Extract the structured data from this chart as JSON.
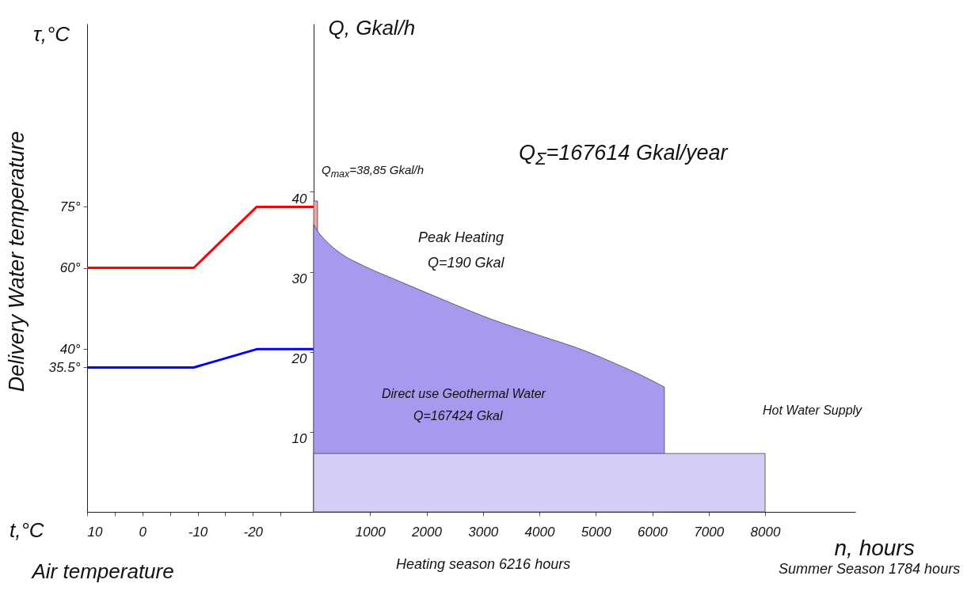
{
  "chart_data": [
    {
      "type": "line",
      "xlabel": "Air temperature",
      "ylabel": "Delivery Water temperature",
      "annotations": [
        "τ,°C",
        "t,°C"
      ],
      "xlim": [
        10,
        -31
      ],
      "ylim": [
        0,
        120
      ],
      "xticks": [
        10,
        {
          "value": 5,
          "label": null
        },
        0,
        {
          "value": -5,
          "label": null
        },
        -10,
        {
          "value": -15,
          "label": null
        },
        -20,
        {
          "value": -25,
          "label": null
        }
      ],
      "yticks": [
        {
          "value": 35.5,
          "label": "35.5°"
        },
        {
          "value": 40,
          "label": "40°"
        },
        {
          "value": 60,
          "label": "60°"
        },
        {
          "value": 75,
          "label": "75°"
        }
      ],
      "series": [
        {
          "color": "#ff0000",
          "x": [
            10,
            -9.3,
            -20.7,
            -31
          ],
          "values": [
            60,
            60,
            75,
            75
          ]
        },
        {
          "color": "#0000ff",
          "x": [
            10,
            -9.3,
            -20.7,
            -31
          ],
          "values": [
            35.5,
            35.5,
            40,
            40
          ]
        }
      ]
    },
    {
      "type": "area",
      "xlabel": "n, hours",
      "ylabel": "Q, Gkal/h",
      "xlim": [
        0,
        9600
      ],
      "ylim": [
        0,
        61
      ],
      "xticks": [
        1000,
        2000,
        3000,
        4000,
        5000,
        6000,
        7000,
        8000
      ],
      "yticks": [
        10,
        20,
        30,
        40
      ],
      "annotations": [
        "Q$_{max}$=38,85 Gkal/h",
        "Q$_{Σ}$=167614 Gkal/year",
        "Heating season 6216 hours",
        "Summer Season 1784 hours",
        "Peak Heating",
        "Q=190 Gkal",
        "Direct use Geothermal Water",
        "Q=167424 Gkal",
        "Hot Water Supply"
      ],
      "series": [
        {
          "color": "#f4a3a3",
          "x": [
            0,
            70
          ],
          "values": [
            38.85,
            38.85
          ]
        },
        {
          "color": "#a898ee",
          "x": [
            0,
            100,
            200,
            480,
            900,
            1460,
            2300,
            3140,
            3980,
            4820,
            5390,
            5800,
            6216
          ],
          "values": [
            35.9,
            34.8,
            34,
            32.3,
            30.7,
            29,
            26.5,
            24.1,
            22.1,
            20.1,
            18.4,
            17.1,
            15.6
          ]
        },
        {
          "color": "#d6cdf6",
          "x": [
            0,
            8000
          ],
          "values": [
            7.3,
            7.3
          ]
        }
      ]
    }
  ]
}
